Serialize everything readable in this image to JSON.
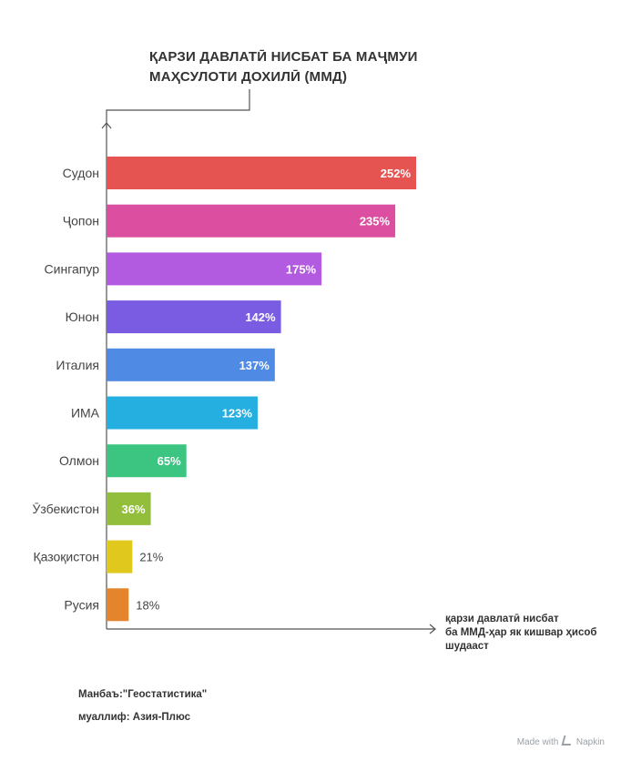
{
  "chart_data": {
    "type": "bar",
    "orientation": "horizontal",
    "title_lines": [
      "ҚАРЗИ ДАВЛАТӢ НИСБАТ БА МАҶМУИ",
      "МАҲСУЛОТИ ДОХИЛӢ (ММД)"
    ],
    "xlabel_lines": [
      "қарзи давлатӣ нисбат",
      "ба ММД-ҳар як кишвар ҳисоб",
      "шудааст"
    ],
    "categories": [
      "Судон",
      "Ҷопон",
      "Сингапур",
      "Юнон",
      "Италия",
      "ИМА",
      "Олмон",
      "Ӯзбекистон",
      "Қазоқистон",
      "Русия"
    ],
    "values": [
      252,
      235,
      175,
      142,
      137,
      123,
      65,
      36,
      21,
      18
    ],
    "labels": [
      "252%",
      "235%",
      "175%",
      "142%",
      "137%",
      "123%",
      "65%",
      "36%",
      "21%",
      "18%"
    ],
    "colors": [
      "#e55451",
      "#dc4fa0",
      "#b35be0",
      "#7a5ce3",
      "#4f8ae5",
      "#25aee0",
      "#3cc481",
      "#93be3b",
      "#e0c91c",
      "#e4842d"
    ],
    "grid": false
  },
  "notes": {
    "source": "Манбаъ:\"Геостатистика\"",
    "author": "муаллиф: Азия-Плюс"
  },
  "footer": {
    "made_with": "Made with",
    "brand": "Napkin"
  }
}
